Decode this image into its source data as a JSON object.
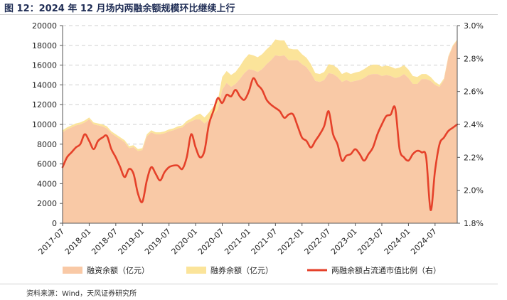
{
  "figure": {
    "title": "图 12：2024 年 12 月场内两融余额规模环比继续上行",
    "source": "资料来源：Wind，天风证券研究所"
  },
  "chart_data": {
    "type": "area",
    "x": [
      "2017-07",
      "2017-08",
      "2017-09",
      "2017-10",
      "2017-11",
      "2017-12",
      "2018-01",
      "2018-02",
      "2018-03",
      "2018-04",
      "2018-05",
      "2018-06",
      "2018-07",
      "2018-08",
      "2018-09",
      "2018-10",
      "2018-11",
      "2018-12",
      "2019-01",
      "2019-02",
      "2019-03",
      "2019-04",
      "2019-05",
      "2019-06",
      "2019-07",
      "2019-08",
      "2019-09",
      "2019-10",
      "2019-11",
      "2019-12",
      "2020-01",
      "2020-02",
      "2020-03",
      "2020-04",
      "2020-05",
      "2020-06",
      "2020-07",
      "2020-08",
      "2020-09",
      "2020-10",
      "2020-11",
      "2020-12",
      "2021-01",
      "2021-02",
      "2021-03",
      "2021-04",
      "2021-05",
      "2021-06",
      "2021-07",
      "2021-08",
      "2021-09",
      "2021-10",
      "2021-11",
      "2021-12",
      "2022-01",
      "2022-02",
      "2022-03",
      "2022-04",
      "2022-05",
      "2022-06",
      "2022-07",
      "2022-08",
      "2022-09",
      "2022-10",
      "2022-11",
      "2022-12",
      "2023-01",
      "2023-02",
      "2023-03",
      "2023-04",
      "2023-05",
      "2023-06",
      "2023-07",
      "2023-08",
      "2023-09",
      "2023-10",
      "2023-11",
      "2023-12",
      "2024-01",
      "2024-02",
      "2024-03",
      "2024-04",
      "2024-05",
      "2024-06",
      "2024-07",
      "2024-08",
      "2024-09",
      "2024-10",
      "2024-11",
      "2024-12"
    ],
    "xticks": [
      "2017-07",
      "2018-01",
      "2018-07",
      "2019-01",
      "2019-07",
      "2020-01",
      "2020-07",
      "2021-01",
      "2021-07",
      "2022-01",
      "2022-07",
      "2023-01",
      "2023-07",
      "2024-01",
      "2024-07"
    ],
    "yticks_left": [
      0,
      2000,
      4000,
      6000,
      8000,
      10000,
      12000,
      14000,
      16000,
      18000,
      20000
    ],
    "yticks_right": [
      "1.8%",
      "2.0%",
      "2.2%",
      "2.4%",
      "2.6%",
      "2.8%",
      "3.0%"
    ],
    "ylim_left": [
      0,
      20000
    ],
    "ylim_right": [
      1.8,
      3.0
    ],
    "grid": true,
    "legend_position": "bottom",
    "series": [
      {
        "name": "融资余额（亿元）",
        "axis": "left",
        "kind": "area",
        "color": "#f9c9a6",
        "values": [
          9200,
          9500,
          9700,
          9900,
          10000,
          10200,
          10500,
          10000,
          9900,
          9800,
          9600,
          9100,
          8800,
          8500,
          8200,
          7600,
          7700,
          7300,
          7400,
          8800,
          9200,
          9000,
          9000,
          9100,
          9300,
          9400,
          9600,
          9700,
          10100,
          10300,
          10500,
          10500,
          10100,
          10500,
          11000,
          11500,
          13500,
          14200,
          13800,
          14100,
          14600,
          15200,
          15600,
          15500,
          15300,
          15600,
          16100,
          16500,
          17000,
          16900,
          17000,
          16500,
          16500,
          16500,
          16100,
          15800,
          15200,
          14400,
          14300,
          14500,
          15200,
          15100,
          14800,
          14300,
          14500,
          14300,
          14400,
          14500,
          14700,
          15000,
          15100,
          15100,
          14900,
          15000,
          14900,
          14700,
          14800,
          15100,
          14700,
          14100,
          14100,
          14600,
          14600,
          14400,
          14000,
          13800,
          14500,
          16800,
          17900,
          18500
        ]
      },
      {
        "name": "融券余额（亿元）",
        "axis": "left",
        "kind": "area",
        "color": "#fbe49a",
        "values": [
          200,
          200,
          200,
          200,
          200,
          200,
          200,
          200,
          200,
          200,
          200,
          200,
          200,
          200,
          200,
          200,
          200,
          200,
          200,
          200,
          200,
          200,
          200,
          200,
          200,
          200,
          200,
          200,
          250,
          300,
          400,
          600,
          600,
          700,
          800,
          900,
          1300,
          1200,
          1200,
          1200,
          1300,
          1400,
          1500,
          1500,
          1500,
          1500,
          1500,
          1500,
          1600,
          1600,
          1500,
          1200,
          1100,
          1100,
          1000,
          950,
          900,
          800,
          800,
          800,
          900,
          900,
          900,
          800,
          800,
          800,
          850,
          850,
          900,
          900,
          950,
          950,
          950,
          950,
          950,
          950,
          950,
          900,
          850,
          800,
          700,
          500,
          500,
          400,
          300,
          200,
          150,
          100,
          100,
          100
        ]
      },
      {
        "name": "两融余额占流通市值比例（右）",
        "axis": "right",
        "kind": "line",
        "color": "#e5412a",
        "values": [
          2.14,
          2.2,
          2.23,
          2.26,
          2.28,
          2.34,
          2.3,
          2.25,
          2.3,
          2.32,
          2.33,
          2.25,
          2.2,
          2.14,
          2.08,
          2.13,
          2.1,
          1.98,
          1.93,
          2.06,
          2.14,
          2.1,
          2.06,
          2.11,
          2.14,
          2.15,
          2.15,
          2.13,
          2.2,
          2.34,
          2.26,
          2.2,
          2.24,
          2.4,
          2.48,
          2.56,
          2.53,
          2.58,
          2.57,
          2.61,
          2.57,
          2.55,
          2.6,
          2.68,
          2.64,
          2.61,
          2.55,
          2.52,
          2.5,
          2.48,
          2.44,
          2.46,
          2.46,
          2.39,
          2.32,
          2.3,
          2.26,
          2.3,
          2.34,
          2.39,
          2.48,
          2.34,
          2.28,
          2.18,
          2.21,
          2.22,
          2.25,
          2.22,
          2.18,
          2.22,
          2.26,
          2.34,
          2.4,
          2.45,
          2.46,
          2.5,
          2.25,
          2.2,
          2.18,
          2.22,
          2.24,
          2.23,
          2.2,
          1.88,
          2.12,
          2.28,
          2.32,
          2.36,
          2.38,
          2.4
        ]
      }
    ]
  }
}
